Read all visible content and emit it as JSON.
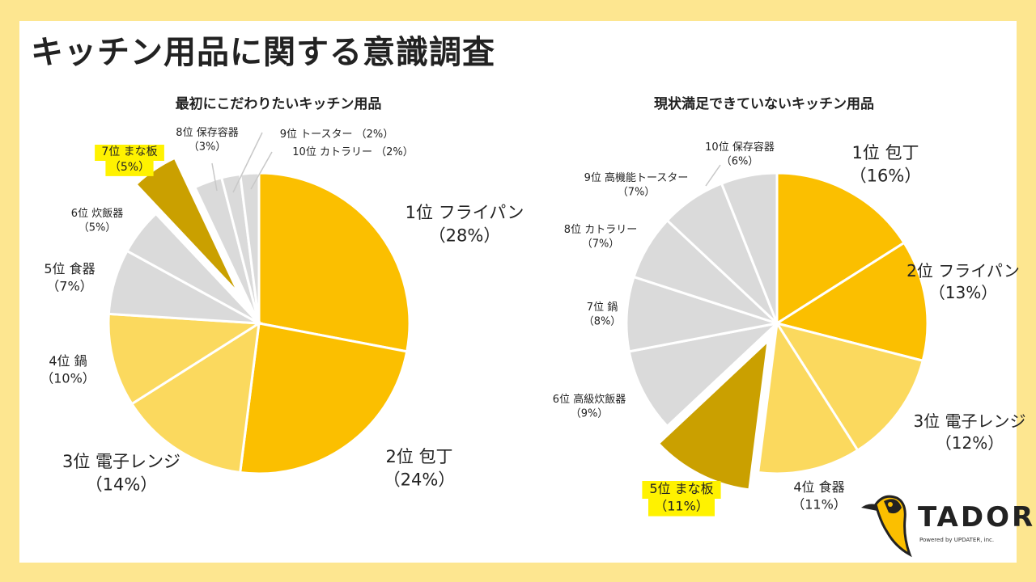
{
  "page": {
    "title": "キッチン用品に関する意識調査"
  },
  "logo": {
    "name": "TADORi",
    "tagline": "Powered by UPDATER, inc."
  },
  "colors": {
    "background": "#fde690",
    "yellow1": "#fbbf00",
    "yellow2": "#fbd95e",
    "dark": "#caa000",
    "gray": "#dadada",
    "highlight": "#fff200"
  },
  "chart_data": [
    {
      "type": "pie",
      "title": "最初にこだわりたいキッチン用品",
      "slices": [
        {
          "rank": "1位",
          "name": "フライパン",
          "value": 28,
          "pct_label": "（28%）",
          "color": "yellow1"
        },
        {
          "rank": "2位",
          "name": "包丁",
          "value": 24,
          "pct_label": "（24%）",
          "color": "yellow1"
        },
        {
          "rank": "3位",
          "name": "電子レンジ",
          "value": 14,
          "pct_label": "（14%）",
          "color": "yellow2"
        },
        {
          "rank": "4位",
          "name": "鍋",
          "value": 10,
          "pct_label": "（10%）",
          "color": "yellow2"
        },
        {
          "rank": "5位",
          "name": "食器",
          "value": 7,
          "pct_label": "（7%）",
          "color": "gray"
        },
        {
          "rank": "6位",
          "name": "炊飯器",
          "value": 5,
          "pct_label": "（5%）",
          "color": "gray"
        },
        {
          "rank": "7位",
          "name": "まな板",
          "value": 5,
          "pct_label": "（5%）",
          "color": "dark",
          "exploded": true,
          "highlight": true
        },
        {
          "rank": "8位",
          "name": "保存容器",
          "value": 3,
          "pct_label": "（3%）",
          "color": "gray"
        },
        {
          "rank": "9位",
          "name": "トースター",
          "value": 2,
          "pct_label": "（2%）",
          "color": "gray"
        },
        {
          "rank": "10位",
          "name": "カトラリー",
          "value": 2,
          "pct_label": "（2%）",
          "color": "gray"
        }
      ]
    },
    {
      "type": "pie",
      "title": "現状満足できていないキッチン用品",
      "slices": [
        {
          "rank": "1位",
          "name": "包丁",
          "value": 16,
          "pct_label": "（16%）",
          "color": "yellow1"
        },
        {
          "rank": "2位",
          "name": "フライパン",
          "value": 13,
          "pct_label": "（13%）",
          "color": "yellow1"
        },
        {
          "rank": "3位",
          "name": "電子レンジ",
          "value": 12,
          "pct_label": "（12%）",
          "color": "yellow2"
        },
        {
          "rank": "4位",
          "name": "食器",
          "value": 11,
          "pct_label": "（11%）",
          "color": "yellow2"
        },
        {
          "rank": "5位",
          "name": "まな板",
          "value": 11,
          "pct_label": "（11%）",
          "color": "dark",
          "exploded": true,
          "highlight": true
        },
        {
          "rank": "6位",
          "name": "高級炊飯器",
          "value": 9,
          "pct_label": "（9%）",
          "color": "gray"
        },
        {
          "rank": "7位",
          "name": "鍋",
          "value": 8,
          "pct_label": "（8%）",
          "color": "gray"
        },
        {
          "rank": "8位",
          "name": "カトラリー",
          "value": 7,
          "pct_label": "（7%）",
          "color": "gray"
        },
        {
          "rank": "9位",
          "name": "高機能トースター",
          "value": 7,
          "pct_label": "（7%）",
          "color": "gray"
        },
        {
          "rank": "10位",
          "name": "保存容器",
          "value": 6,
          "pct_label": "（6%）",
          "color": "gray"
        }
      ]
    }
  ]
}
